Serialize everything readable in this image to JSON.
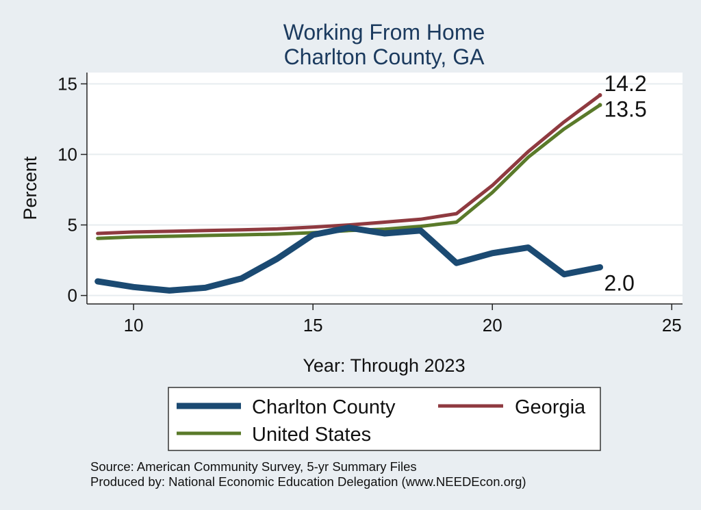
{
  "chart_data": {
    "type": "line",
    "title": [
      "Working From Home",
      "Charlton County, GA"
    ],
    "xlabel": "Year: Through 2023",
    "ylabel": "Percent",
    "xlim": [
      8.7,
      25.3
    ],
    "ylim": [
      -0.6,
      15.8
    ],
    "xticks": [
      10,
      15,
      20,
      25
    ],
    "yticks": [
      0,
      5,
      10,
      15
    ],
    "grid": true,
    "x": [
      9,
      10,
      11,
      12,
      13,
      14,
      15,
      16,
      17,
      18,
      19,
      20,
      21,
      22,
      23
    ],
    "series": [
      {
        "name": "Charlton County",
        "color": "#1b4a72",
        "width": 9,
        "values": [
          1.0,
          0.6,
          0.35,
          0.55,
          1.2,
          2.6,
          4.3,
          4.8,
          4.4,
          4.6,
          2.3,
          3.0,
          3.4,
          1.5,
          2.0
        ],
        "end_label": "2.0"
      },
      {
        "name": "Georgia",
        "color": "#8f3a40",
        "width": 5,
        "values": [
          4.4,
          4.5,
          4.55,
          4.6,
          4.65,
          4.72,
          4.85,
          5.0,
          5.2,
          5.4,
          5.8,
          7.8,
          10.2,
          12.3,
          14.2
        ],
        "end_label": "14.2"
      },
      {
        "name": "United States",
        "color": "#5a7a2a",
        "width": 5,
        "values": [
          4.05,
          4.15,
          4.2,
          4.25,
          4.3,
          4.35,
          4.45,
          4.6,
          4.7,
          4.9,
          5.2,
          7.3,
          9.8,
          11.8,
          13.5
        ],
        "end_label": "13.5"
      }
    ],
    "legend_position": "bottom",
    "notes": [
      "Source: American Community Survey, 5-yr Summary Files",
      "Produced by: National Economic Education Delegation (www.NEEDEcon.org)"
    ]
  }
}
